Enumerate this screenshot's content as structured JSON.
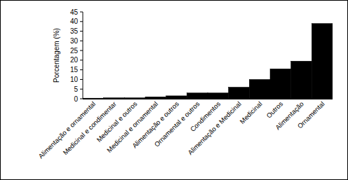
{
  "chart_data": {
    "type": "bar",
    "y_label": "Porcentagem (%)",
    "categories": [
      "Alimentação e ornamental",
      "Medicinal e condimentar",
      "Medicinal e outros",
      "Medicinal e ornamental",
      "Alimentação e outros",
      "Ornamental e outros",
      "Condimentos",
      "Alimentação e Medicinal",
      "Medicinal",
      "Outros",
      "Alimentação",
      "Ornamental"
    ],
    "values": [
      0.3,
      0.5,
      0.5,
      1,
      1.5,
      3,
      3,
      6,
      10,
      15.5,
      19.5,
      39
    ],
    "color": "#000000",
    "ylim": [
      0,
      45
    ],
    "yticks": [
      0,
      5,
      10,
      15,
      20,
      25,
      30,
      35,
      40,
      45
    ],
    "grid": false
  }
}
